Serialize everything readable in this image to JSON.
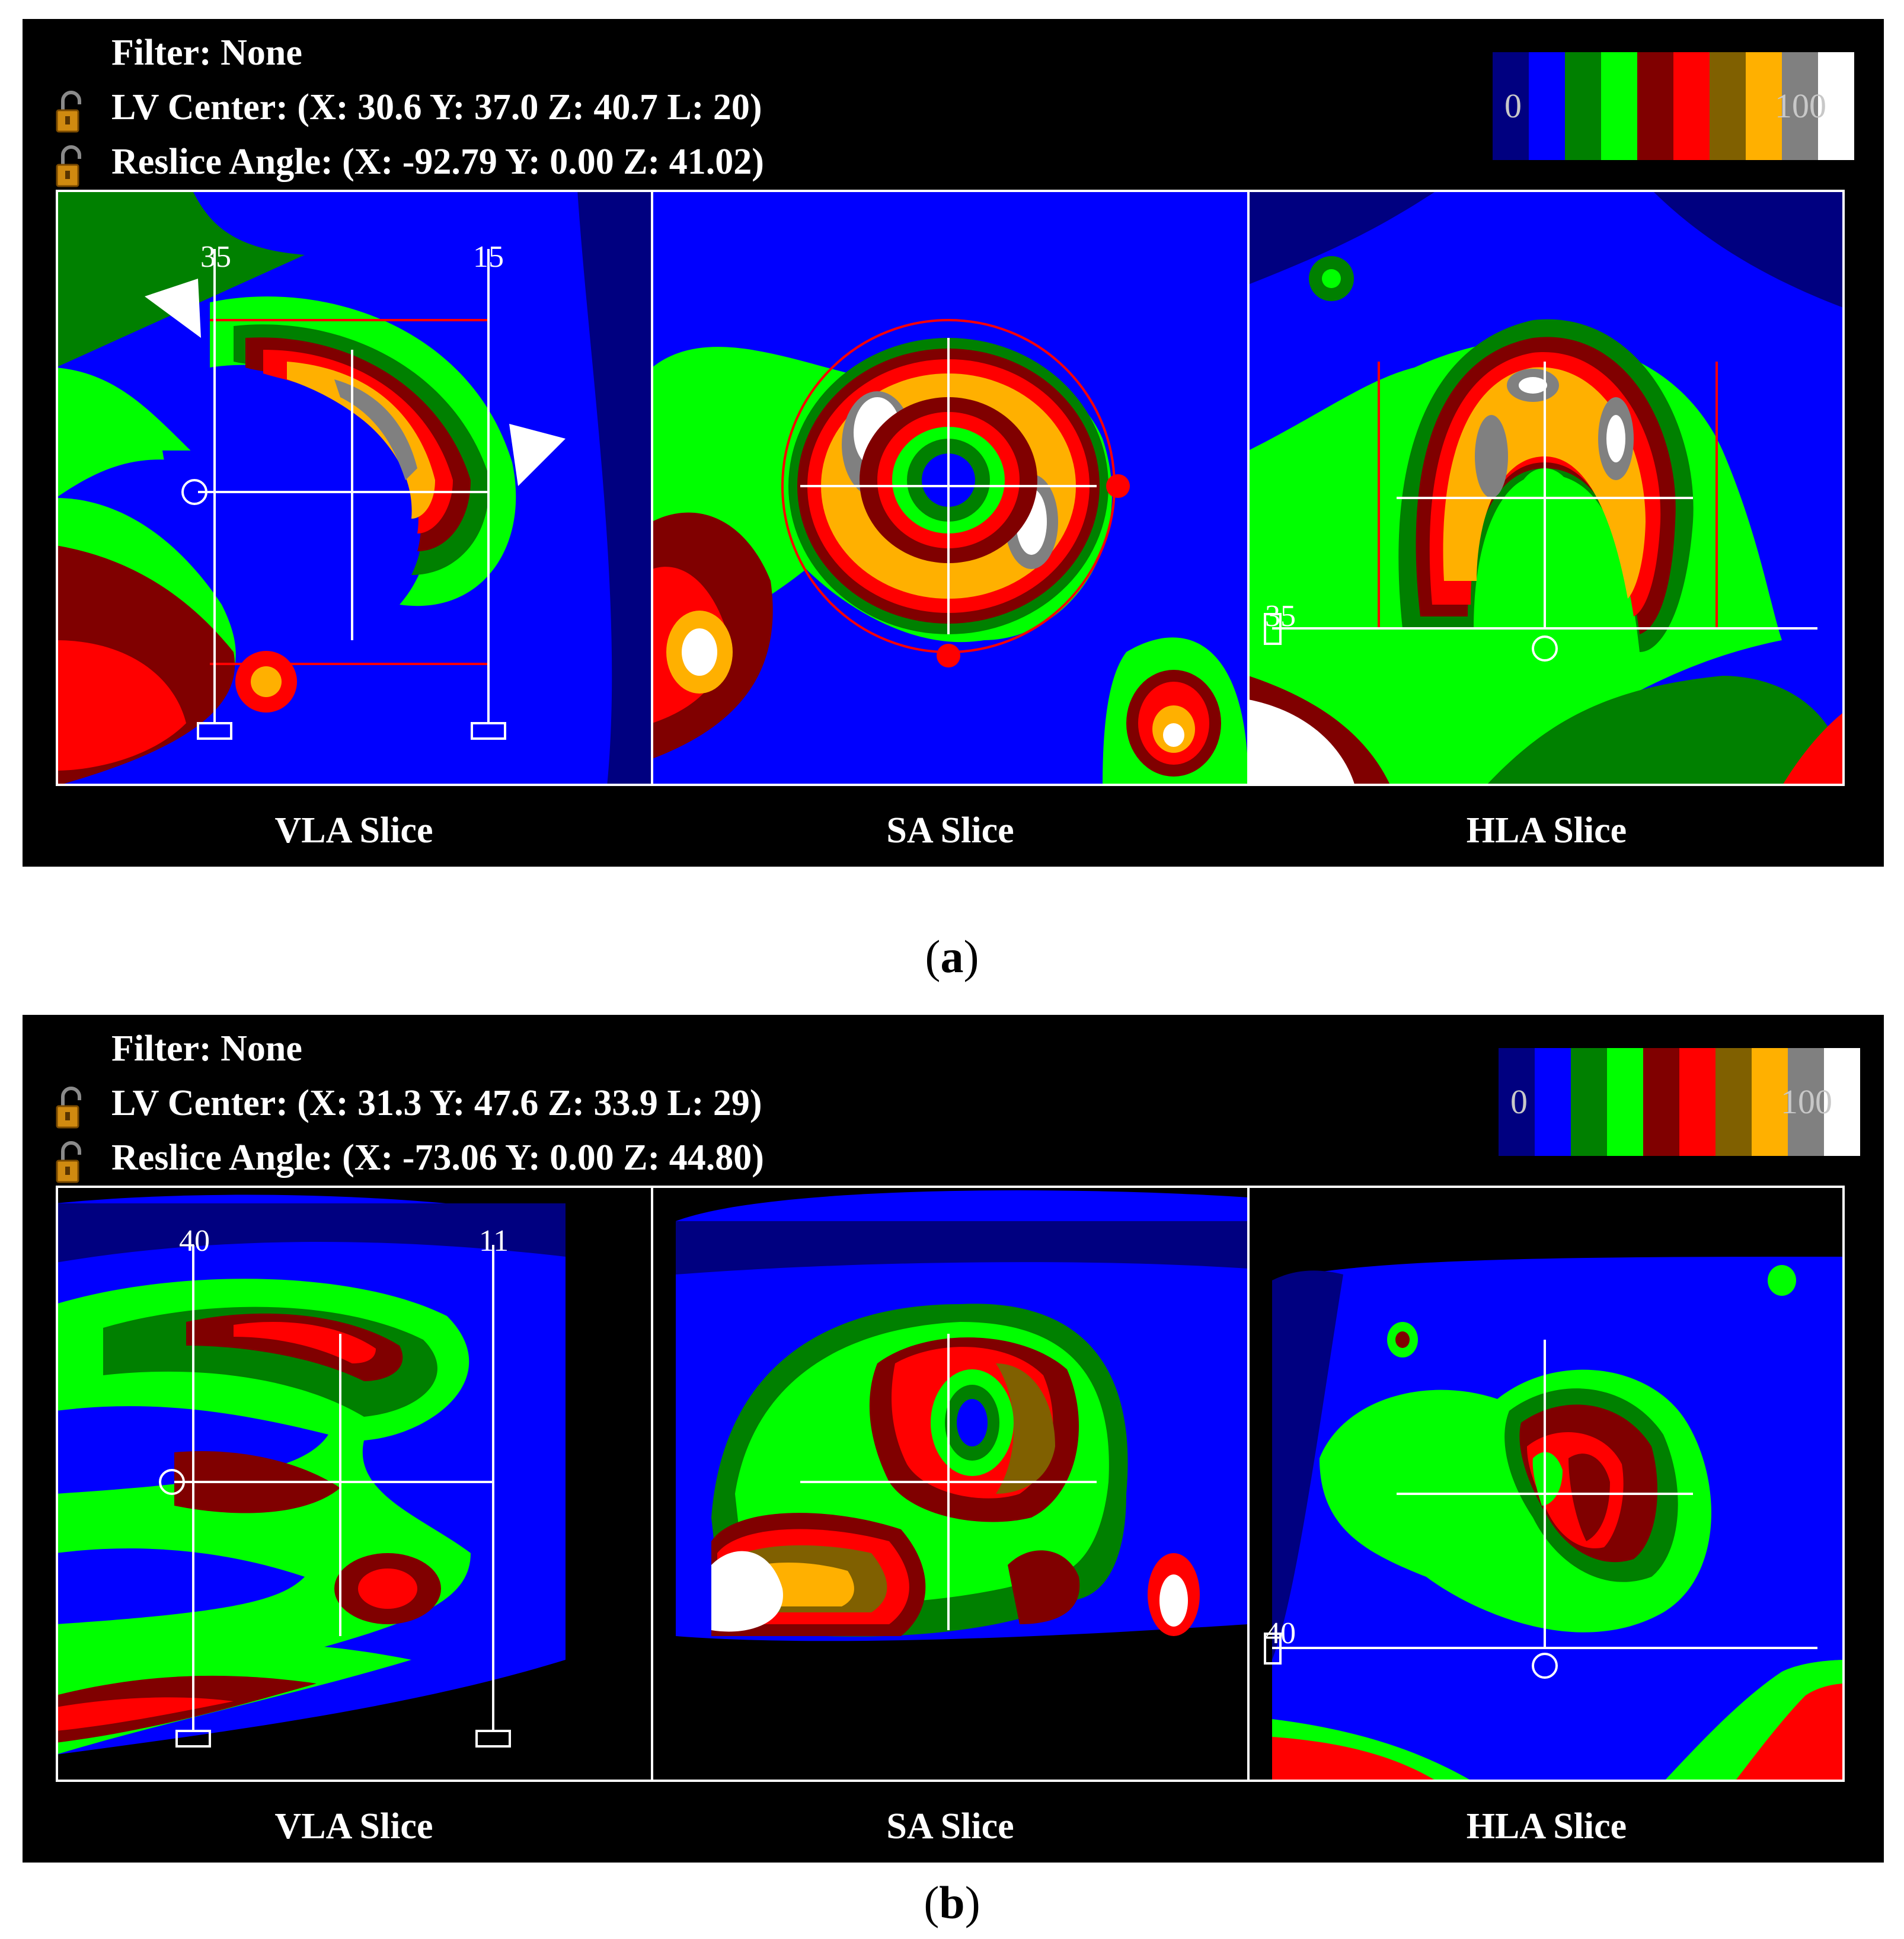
{
  "palette": [
    "#000080",
    "#0000ff",
    "#008000",
    "#00ff00",
    "#800000",
    "#ff0000",
    "#806000",
    "#ffb000",
    "#808080",
    "#ffffff"
  ],
  "colorbar": {
    "min_label": "0",
    "max_label": "100"
  },
  "panels": [
    {
      "id": "a",
      "filter": "Filter: None",
      "lv_center": "LV Center: (X: 30.6   Y: 37.0   Z: 40.7  L: 20)",
      "reslice_angle": "Reslice Angle: (X: -92.79   Y: 0.00   Z: 41.02)",
      "vla": {
        "label": "VLA Slice",
        "left_marker": "35",
        "right_marker": "15"
      },
      "sa": {
        "label": "SA Slice"
      },
      "hla": {
        "label": "HLA Slice",
        "marker": "35"
      },
      "caption": "a"
    },
    {
      "id": "b",
      "filter": "Filter: None",
      "lv_center": "LV Center: (X: 31.3   Y: 47.6   Z: 33.9  L: 29)",
      "reslice_angle": "Reslice Angle: (X: -73.06   Y: 0.00   Z: 44.80)",
      "vla": {
        "label": "VLA Slice",
        "left_marker": "40",
        "right_marker": "11"
      },
      "sa": {
        "label": "SA Slice"
      },
      "hla": {
        "label": "HLA Slice",
        "marker": "40"
      },
      "caption": "b"
    }
  ]
}
